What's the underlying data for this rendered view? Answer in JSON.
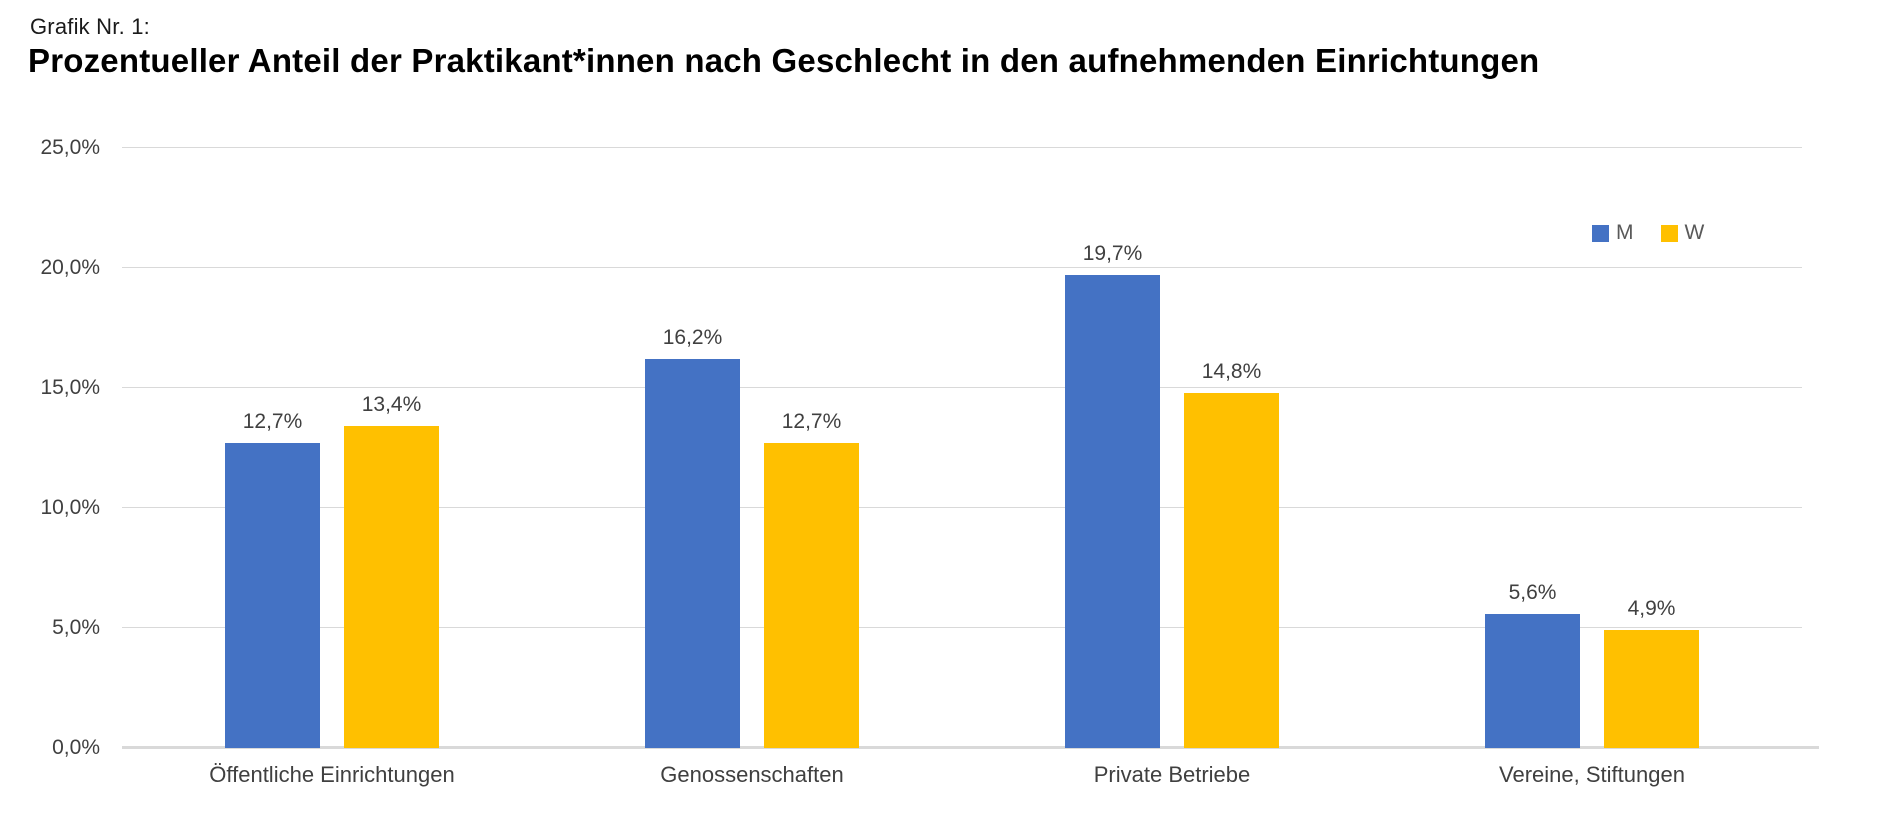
{
  "header": {
    "pretitle": "Grafik Nr. 1:",
    "title": "Prozentueller Anteil der Praktikant*innen nach Geschlecht in den aufnehmenden Einrichtungen"
  },
  "colors": {
    "series_m": "#4472C4",
    "series_w": "#FFC000",
    "gridline": "#D9D9D9",
    "axis_text": "#404040"
  },
  "chart_data": {
    "type": "bar",
    "title": "Prozentueller Anteil der Praktikant*innen nach Geschlecht in den aufnehmenden Einrichtungen",
    "categories": [
      "Öffentliche Einrichtungen",
      "Genossenschaften",
      "Private Betriebe",
      "Vereine, Stiftungen"
    ],
    "series": [
      {
        "name": "M",
        "color": "#4472C4",
        "values": [
          12.7,
          16.2,
          19.7,
          5.6
        ],
        "labels": [
          "12,7%",
          "16,2%",
          "19,7%",
          "5,6%"
        ]
      },
      {
        "name": "W",
        "color": "#FFC000",
        "values": [
          13.4,
          12.7,
          14.8,
          4.9
        ],
        "labels": [
          "13,4%",
          "12,7%",
          "14,8%",
          "4,9%"
        ]
      }
    ],
    "xlabel": "",
    "ylabel": "",
    "ylim": [
      0,
      25
    ],
    "ytick_step": 5,
    "yticks": [
      "0,0%",
      "5,0%",
      "10,0%",
      "15,0%",
      "20,0%",
      "25,0%"
    ],
    "grid": true,
    "legend_position": "top-right"
  }
}
